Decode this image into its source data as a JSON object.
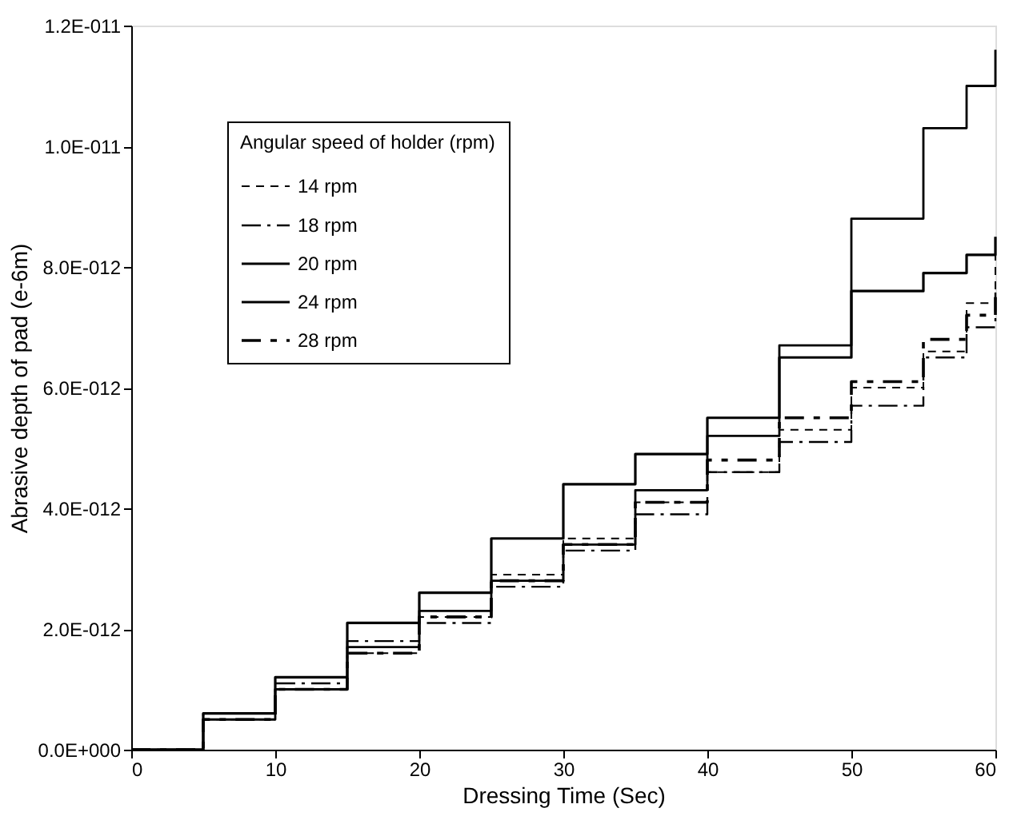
{
  "chart_data": {
    "type": "step",
    "xlabel": "Dressing Time (Sec)",
    "ylabel": "Abrasive depth of pad (e-6m)",
    "legend_title": "Angular speed of holder (rpm)",
    "legend": "top left",
    "grid": false,
    "marker": "none",
    "xlim": [
      0,
      60
    ],
    "xticks": [
      0,
      10,
      20,
      30,
      40,
      50,
      60
    ],
    "ylim": [
      0,
      1.2e-11
    ],
    "yticks": [
      {
        "value": 0,
        "label": "0.0E+000"
      },
      {
        "value": 2e-12,
        "label": "2.0E-012"
      },
      {
        "value": 4e-12,
        "label": "4.0E-012"
      },
      {
        "value": 6e-12,
        "label": "6.0E-012"
      },
      {
        "value": 8e-12,
        "label": "8.0E-012"
      },
      {
        "value": 1e-11,
        "label": "1.0E-011"
      },
      {
        "value": 1.2e-11,
        "label": "1.2E-011"
      }
    ],
    "x": [
      0,
      5,
      10,
      15,
      20,
      25,
      30,
      35,
      40,
      45,
      50,
      55,
      58,
      60
    ],
    "series": [
      {
        "name": "14 rpm",
        "color": "#000000",
        "line_style": "dashed",
        "values": [
          0,
          5e-13,
          1e-12,
          1.6e-12,
          2.2e-12,
          2.9e-12,
          3.5e-12,
          4.1e-12,
          4.6e-12,
          5.3e-12,
          6e-12,
          6.6e-12,
          7.4e-12,
          8.3e-12
        ]
      },
      {
        "name": "18 rpm",
        "color": "#000000",
        "line_style": "dashed",
        "values": [
          0,
          6e-13,
          1.1e-12,
          1.8e-12,
          2.1e-12,
          2.7e-12,
          3.3e-12,
          3.9e-12,
          4.6e-12,
          5.1e-12,
          5.7e-12,
          6.5e-12,
          7e-12,
          7.6e-12
        ]
      },
      {
        "name": "20 rpm",
        "color": "#000000",
        "line_style": "solid",
        "values": [
          0,
          5e-13,
          1e-12,
          1.7e-12,
          2.3e-12,
          2.8e-12,
          3.4e-12,
          4.3e-12,
          5.2e-12,
          6.7e-12,
          8.8e-12,
          1.03e-11,
          1.1e-11,
          1.16e-11
        ]
      },
      {
        "name": "24 rpm",
        "color": "#000000",
        "line_style": "solid",
        "values": [
          0,
          6e-13,
          1.2e-12,
          2.1e-12,
          2.6e-12,
          3.5e-12,
          4.4e-12,
          4.9e-12,
          5.5e-12,
          6.5e-12,
          7.6e-12,
          7.9e-12,
          8.2e-12,
          8.5e-12
        ]
      },
      {
        "name": "28 rpm",
        "color": "#000000",
        "line_style": "dashed",
        "values": [
          0,
          5e-13,
          1e-12,
          1.6e-12,
          2.2e-12,
          2.8e-12,
          3.4e-12,
          4.1e-12,
          4.8e-12,
          5.5e-12,
          6.1e-12,
          6.8e-12,
          7.2e-12,
          7.5e-12
        ]
      }
    ]
  }
}
